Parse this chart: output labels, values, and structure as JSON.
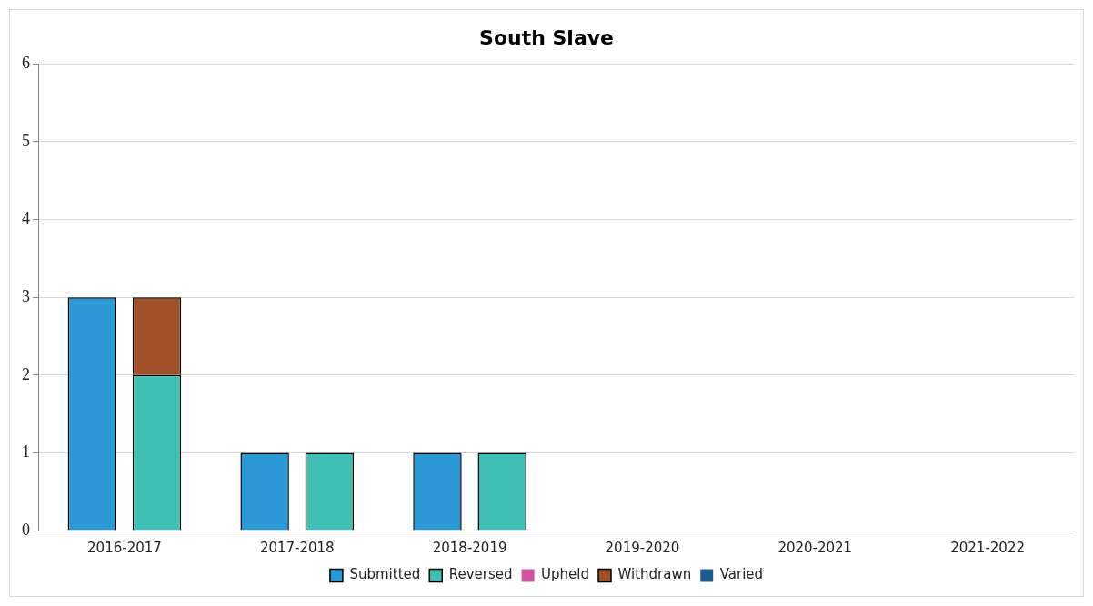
{
  "chart_data": {
    "type": "bar",
    "title": "South Slave",
    "categories": [
      "2016-2017",
      "2017-2018",
      "2018-2019",
      "2019-2020",
      "2020-2021",
      "2021-2022"
    ],
    "series": [
      {
        "name": "Submitted",
        "color": "#2a99d6",
        "values": [
          3,
          1,
          1,
          0,
          0,
          0
        ]
      },
      {
        "name": "Reversed",
        "color": "#40bfb4",
        "base": [
          0,
          0,
          0,
          null,
          null,
          null
        ],
        "values": [
          2,
          1,
          1,
          0,
          0,
          0
        ]
      },
      {
        "name": "Upheld",
        "color": "#cf559f",
        "base": [
          null,
          null,
          null,
          null,
          null,
          null
        ],
        "values": [
          0,
          0,
          0,
          0,
          0,
          0
        ]
      },
      {
        "name": "Withdrawn",
        "color": "#a15127",
        "base": [
          2,
          null,
          null,
          null,
          null,
          null
        ],
        "values": [
          1,
          0,
          0,
          0,
          0,
          0
        ]
      },
      {
        "name": "Varied",
        "color": "#1b5c8a",
        "base": [
          null,
          null,
          null,
          null,
          null,
          null
        ],
        "values": [
          0,
          0,
          0,
          0,
          0,
          0
        ]
      }
    ],
    "ylim": [
      0,
      6
    ],
    "yticks": [
      0,
      1,
      2,
      3,
      4,
      5,
      6
    ],
    "grid": "y",
    "legend": "bottom"
  }
}
